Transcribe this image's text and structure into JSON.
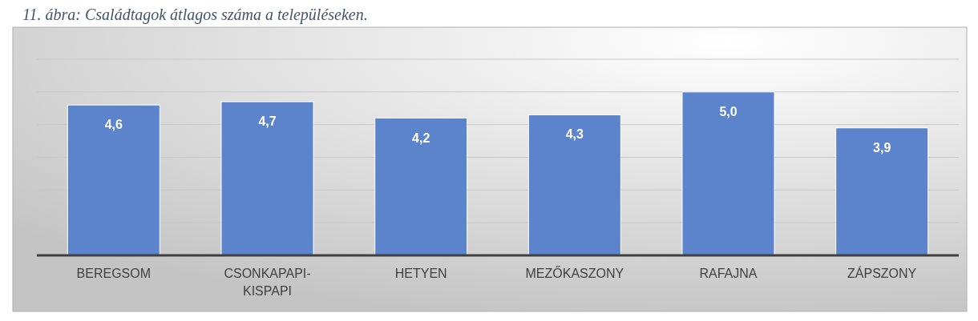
{
  "chart_data": {
    "type": "bar",
    "title": "11. ábra: Családtagok átlagos száma a településeken.",
    "categories": [
      "BEREGSOM",
      "CSONKAPAPI-KISPAPI",
      "HETYEN",
      "MEZŐKASZONY",
      "RAFAJNA",
      "ZÁPSZONY"
    ],
    "values": [
      4.6,
      4.7,
      4.2,
      4.3,
      5.0,
      3.9
    ],
    "value_labels": [
      "4,6",
      "4,7",
      "4,2",
      "4,3",
      "5,0",
      "3,9"
    ],
    "color": "#5b84cc",
    "ylim": [
      0,
      6
    ],
    "yticks": [
      {
        "value": 0,
        "label": null
      },
      {
        "value": 1,
        "label": null
      },
      {
        "value": 2,
        "label": null
      },
      {
        "value": 3,
        "label": null
      },
      {
        "value": 4,
        "label": null
      },
      {
        "value": 5,
        "label": null
      },
      {
        "value": 6,
        "label": null
      }
    ],
    "grid": "y",
    "tick_labels": "x"
  }
}
